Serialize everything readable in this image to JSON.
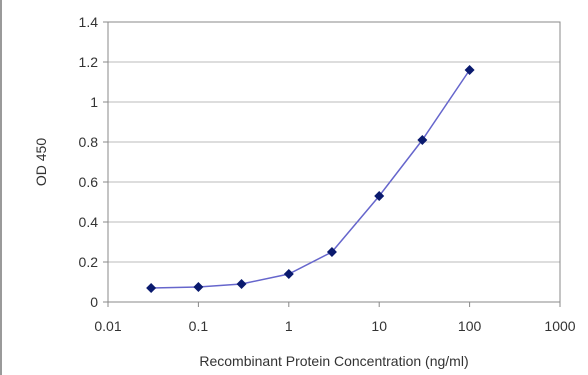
{
  "chart_data": {
    "type": "line",
    "title": "",
    "xlabel": "Recombinant Protein Concentration (ng/ml)",
    "ylabel": "OD 450",
    "xscale": "log",
    "xlim": [
      0.01,
      1000
    ],
    "ylim": [
      0,
      1.4
    ],
    "xticks": [
      0.01,
      0.1,
      1,
      10,
      100,
      1000
    ],
    "xtick_labels": [
      "0.01",
      "0.1",
      "1",
      "10",
      "100",
      "1000"
    ],
    "yticks": [
      0,
      0.2,
      0.4,
      0.6,
      0.8,
      1,
      1.2,
      1.4
    ],
    "ytick_labels": [
      "0",
      "0.2",
      "0.4",
      "0.6",
      "0.8",
      "1",
      "1.2",
      "1.4"
    ],
    "grid": "horizontal",
    "legend": "none",
    "series": [
      {
        "x": [
          0.03,
          0.1,
          0.3,
          1,
          3,
          10,
          30,
          100
        ],
        "y": [
          0.07,
          0.075,
          0.09,
          0.14,
          0.25,
          0.53,
          0.81,
          1.16
        ],
        "color": "#6666cc",
        "marker_color": "#0a1a6e"
      }
    ],
    "colors": {
      "grid": "#bbbbbb",
      "frame": "#888888",
      "text": "#333333"
    }
  }
}
